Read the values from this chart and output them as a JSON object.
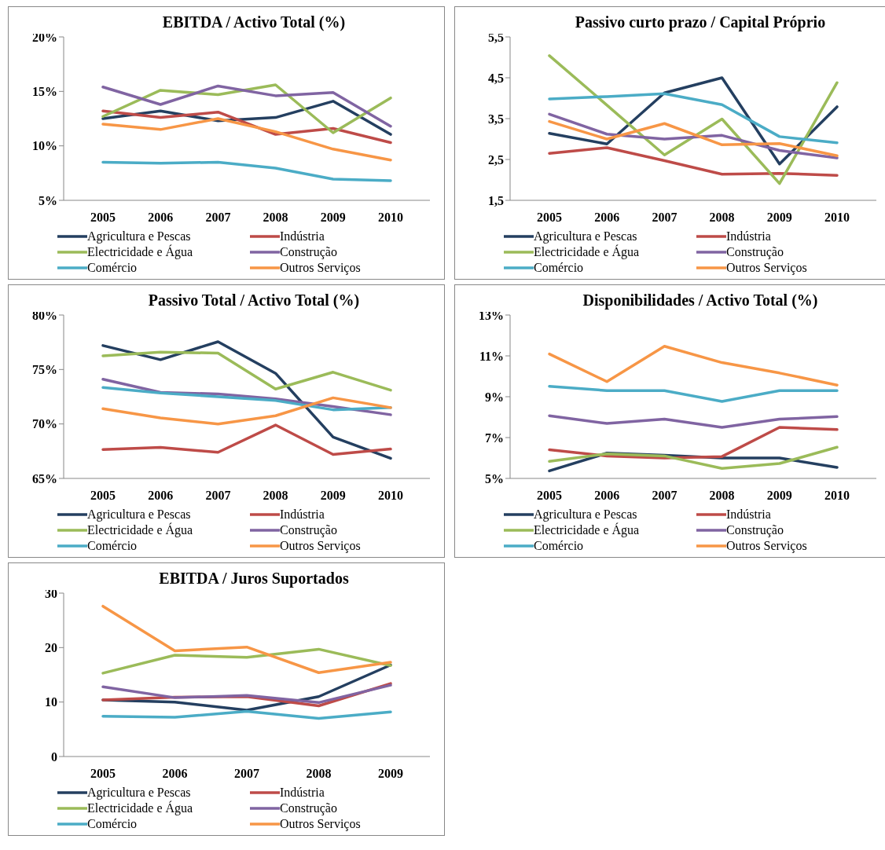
{
  "chart_data": [
    {
      "type": "line",
      "title": "EBITDA / Activo Total (%)",
      "categories": [
        "2005",
        "2006",
        "2007",
        "2008",
        "2009",
        "2010"
      ],
      "ylim": [
        5,
        20
      ],
      "yticks": [
        {
          "value": 5,
          "label": "5%"
        },
        {
          "value": 10,
          "label": "10%"
        },
        {
          "value": 15,
          "label": "15%"
        },
        {
          "value": 20,
          "label": "20%"
        }
      ],
      "grid": false,
      "legend": "bottom",
      "series": [
        {
          "name": "Agricultura e Pescas",
          "color": "#243f60",
          "values": [
            12.5,
            13.2,
            12.3,
            12.6,
            14.1,
            11.05
          ]
        },
        {
          "name": "Indústria",
          "color": "#be4b48",
          "values": [
            13.2,
            12.6,
            13.1,
            11.05,
            11.6,
            10.3
          ]
        },
        {
          "name": "Electricidade e Água",
          "color": "#9bbb59",
          "values": [
            12.7,
            15.1,
            14.7,
            15.6,
            11.2,
            14.4
          ]
        },
        {
          "name": "Construção",
          "color": "#8064a2",
          "values": [
            15.4,
            13.8,
            15.5,
            14.6,
            14.9,
            11.8
          ]
        },
        {
          "name": "Comércio",
          "color": "#4bacc6",
          "values": [
            8.5,
            8.4,
            8.5,
            7.95,
            6.95,
            6.8
          ]
        },
        {
          "name": "Outros Serviços",
          "color": "#f79646",
          "values": [
            12.0,
            11.5,
            12.5,
            11.3,
            9.7,
            8.7
          ]
        }
      ]
    },
    {
      "type": "line",
      "title": "Passivo curto prazo / Capital Próprio",
      "categories": [
        "2005",
        "2006",
        "2007",
        "2008",
        "2009",
        "2010"
      ],
      "ylim": [
        1.5,
        5.5
      ],
      "yticks": [
        {
          "value": 1.5,
          "label": "1,5"
        },
        {
          "value": 2.5,
          "label": "2,5"
        },
        {
          "value": 3.5,
          "label": "3,5"
        },
        {
          "value": 4.5,
          "label": "4,5"
        },
        {
          "value": 5.5,
          "label": "5,5"
        }
      ],
      "grid": false,
      "legend": "bottom",
      "series": [
        {
          "name": "Agricultura e Pescas",
          "color": "#243f60",
          "values": [
            3.14,
            2.88,
            4.13,
            4.5,
            2.39,
            3.79
          ]
        },
        {
          "name": "Indústria",
          "color": "#be4b48",
          "values": [
            2.65,
            2.79,
            2.47,
            2.14,
            2.16,
            2.11
          ]
        },
        {
          "name": "Electricidade e Água",
          "color": "#9bbb59",
          "values": [
            5.04,
            3.83,
            2.61,
            3.49,
            1.91,
            4.38
          ]
        },
        {
          "name": "Construção",
          "color": "#8064a2",
          "values": [
            3.61,
            3.12,
            3.0,
            3.09,
            2.72,
            2.54
          ]
        },
        {
          "name": "Comércio",
          "color": "#4bacc6",
          "values": [
            3.98,
            4.04,
            4.11,
            3.84,
            3.06,
            2.91
          ]
        },
        {
          "name": "Outros Serviços",
          "color": "#f79646",
          "values": [
            3.43,
            3.0,
            3.38,
            2.86,
            2.89,
            2.59
          ]
        }
      ]
    },
    {
      "type": "line",
      "title": "Passivo Total / Activo Total (%)",
      "categories": [
        "2005",
        "2006",
        "2007",
        "2008",
        "2009",
        "2010"
      ],
      "ylim": [
        65,
        80
      ],
      "yticks": [
        {
          "value": 65,
          "label": "65%"
        },
        {
          "value": 70,
          "label": "70%"
        },
        {
          "value": 75,
          "label": "75%"
        },
        {
          "value": 80,
          "label": "80%"
        }
      ],
      "grid": false,
      "legend": "bottom",
      "series": [
        {
          "name": "Agricultura e Pescas",
          "color": "#243f60",
          "values": [
            77.2,
            75.9,
            77.55,
            74.65,
            68.8,
            66.85
          ]
        },
        {
          "name": "Indústria",
          "color": "#be4b48",
          "values": [
            67.65,
            67.85,
            67.4,
            69.9,
            67.2,
            67.7
          ]
        },
        {
          "name": "Electricidade e Água",
          "color": "#9bbb59",
          "values": [
            76.25,
            76.6,
            76.5,
            73.2,
            74.75,
            73.1
          ]
        },
        {
          "name": "Construção",
          "color": "#8064a2",
          "values": [
            74.1,
            72.9,
            72.75,
            72.3,
            71.6,
            70.85
          ]
        },
        {
          "name": "Comércio",
          "color": "#4bacc6",
          "values": [
            73.35,
            72.85,
            72.5,
            72.15,
            71.3,
            71.5
          ]
        },
        {
          "name": "Outros Serviços",
          "color": "#f79646",
          "values": [
            71.4,
            70.55,
            70.0,
            70.75,
            72.4,
            71.5
          ]
        }
      ]
    },
    {
      "type": "line",
      "title": "Disponibilidades / Activo Total (%)",
      "categories": [
        "2005",
        "2006",
        "2007",
        "2008",
        "2009",
        "2010"
      ],
      "ylim": [
        5,
        13
      ],
      "yticks": [
        {
          "value": 5,
          "label": "5%"
        },
        {
          "value": 7,
          "label": "7%"
        },
        {
          "value": 9,
          "label": "9%"
        },
        {
          "value": 11,
          "label": "11%"
        },
        {
          "value": 13,
          "label": "13%"
        }
      ],
      "grid": false,
      "legend": "bottom",
      "series": [
        {
          "name": "Agricultura e Pescas",
          "color": "#243f60",
          "values": [
            5.37,
            6.24,
            6.13,
            6.0,
            6.0,
            5.54
          ]
        },
        {
          "name": "Indústria",
          "color": "#be4b48",
          "values": [
            6.4,
            6.1,
            6.0,
            6.07,
            7.5,
            7.39
          ]
        },
        {
          "name": "Electricidade e Água",
          "color": "#9bbb59",
          "values": [
            5.84,
            6.2,
            6.1,
            5.49,
            5.73,
            6.53
          ]
        },
        {
          "name": "Construção",
          "color": "#8064a2",
          "values": [
            8.07,
            7.69,
            7.9,
            7.5,
            7.9,
            8.03
          ]
        },
        {
          "name": "Comércio",
          "color": "#4bacc6",
          "values": [
            9.51,
            9.3,
            9.3,
            8.77,
            9.3,
            9.3
          ]
        },
        {
          "name": "Outros Serviços",
          "color": "#f79646",
          "values": [
            11.09,
            9.74,
            11.47,
            10.67,
            10.16,
            9.57
          ]
        }
      ]
    },
    {
      "type": "line",
      "title": "EBITDA / Juros Suportados",
      "categories": [
        "2005",
        "2006",
        "2007",
        "2008",
        "2009"
      ],
      "ylim": [
        0,
        30
      ],
      "yticks": [
        0,
        10,
        20,
        30
      ],
      "grid": false,
      "legend": "bottom",
      "series": [
        {
          "name": "Agricultura e Pescas",
          "color": "#243f60",
          "values": [
            10.4,
            10.0,
            8.5,
            11.0,
            16.8
          ]
        },
        {
          "name": "Indústria",
          "color": "#be4b48",
          "values": [
            10.4,
            10.9,
            11.0,
            9.3,
            13.4
          ]
        },
        {
          "name": "Electricidade e Água",
          "color": "#9bbb59",
          "values": [
            15.3,
            18.6,
            18.2,
            19.7,
            16.7
          ]
        },
        {
          "name": "Construção",
          "color": "#8064a2",
          "values": [
            12.8,
            10.8,
            11.2,
            9.9,
            13.1
          ]
        },
        {
          "name": "Comércio",
          "color": "#4bacc6",
          "values": [
            7.4,
            7.2,
            8.3,
            7.0,
            8.2
          ]
        },
        {
          "name": "Outros Serviços",
          "color": "#f79646",
          "values": [
            27.6,
            19.4,
            20.1,
            15.4,
            17.3
          ]
        }
      ]
    }
  ]
}
